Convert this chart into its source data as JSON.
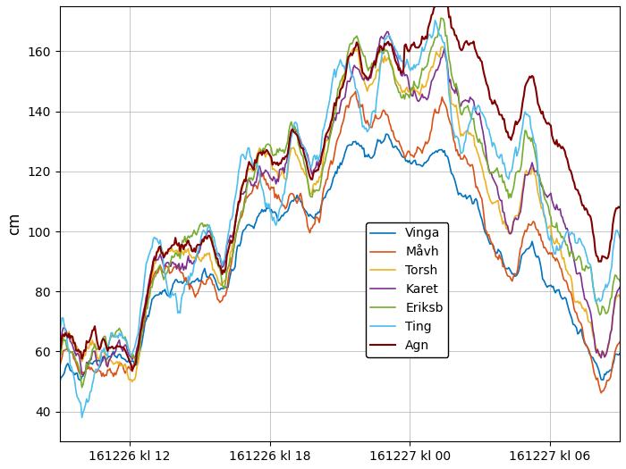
{
  "title": "",
  "ylabel": "cm",
  "xlabel": "",
  "ylim": [
    30,
    175
  ],
  "xlim": [
    0,
    480
  ],
  "xtick_positions": [
    60,
    180,
    300,
    420
  ],
  "xtick_labels": [
    "161226 kl 12",
    "161226 kl 18",
    "161227 kl 00",
    "161227 kl 06"
  ],
  "ytick_positions": [
    40,
    60,
    80,
    100,
    120,
    140,
    160
  ],
  "series_names": [
    "Vinga",
    "Måvh",
    "Torsh",
    "Karet",
    "Eriksb",
    "Ting",
    "Agn"
  ],
  "series_colors": [
    "#0072BD",
    "#D95319",
    "#EDB120",
    "#7E2F8E",
    "#77AC30",
    "#4DBEEE",
    "#800000"
  ],
  "series_linewidths": [
    1.2,
    1.2,
    1.2,
    1.2,
    1.2,
    1.2,
    1.5
  ],
  "background_color": "#ffffff",
  "grid_color": "#b0b0b0"
}
